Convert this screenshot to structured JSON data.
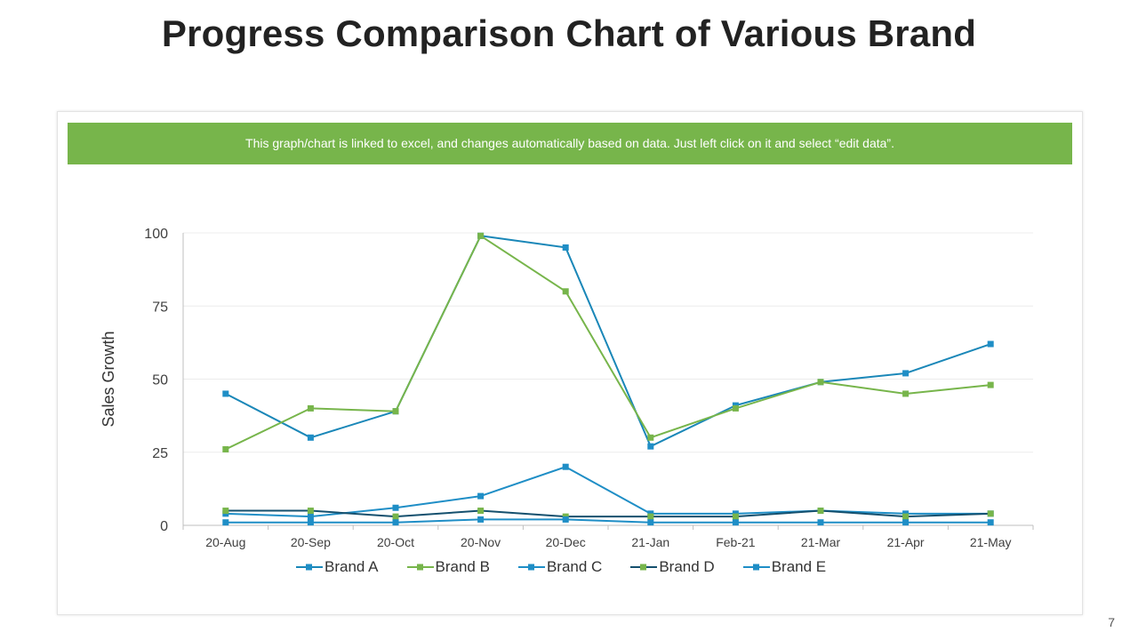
{
  "page": {
    "title": "Progress Comparison Chart of Various Brand",
    "page_number": "7"
  },
  "banner": {
    "text": "This graph/chart is linked to excel, and changes automatically  based on data. Just left click on it and select “edit data”."
  },
  "chart_data": {
    "type": "line",
    "title": "",
    "xlabel": "",
    "ylabel": "Sales Growth",
    "ylim": [
      0,
      100
    ],
    "yticks": [
      0,
      25,
      50,
      75,
      100
    ],
    "grid": true,
    "legend_position": "bottom",
    "categories": [
      "20-Aug",
      "20-Sep",
      "20-Oct",
      "20-Nov",
      "20-Dec",
      "21-Jan",
      "Feb-21",
      "21-Mar",
      "21-Apr",
      "21-May"
    ],
    "series": [
      {
        "name": "Brand A",
        "color": "#1f8ec6",
        "line_color": "#1a87b8",
        "values": [
          45,
          30,
          39,
          99,
          95,
          27,
          41,
          49,
          52,
          62
        ]
      },
      {
        "name": "Brand B",
        "color": "#77b54b",
        "line_color": "#77b54b",
        "values": [
          26,
          40,
          39,
          99,
          80,
          30,
          40,
          49,
          45,
          48
        ]
      },
      {
        "name": "Brand C",
        "color": "#1f8ec6",
        "line_color": "#1f8ec6",
        "values": [
          4,
          3,
          6,
          10,
          20,
          4,
          4,
          5,
          4,
          4
        ]
      },
      {
        "name": "Brand D",
        "color": "#77b54b",
        "line_color": "#15506e",
        "values": [
          5,
          5,
          3,
          5,
          3,
          3,
          3,
          5,
          3,
          4
        ]
      },
      {
        "name": "Brand E",
        "color": "#1f8ec6",
        "line_color": "#1f8ec6",
        "values": [
          1,
          1,
          1,
          2,
          2,
          1,
          1,
          1,
          1,
          1
        ]
      }
    ]
  }
}
